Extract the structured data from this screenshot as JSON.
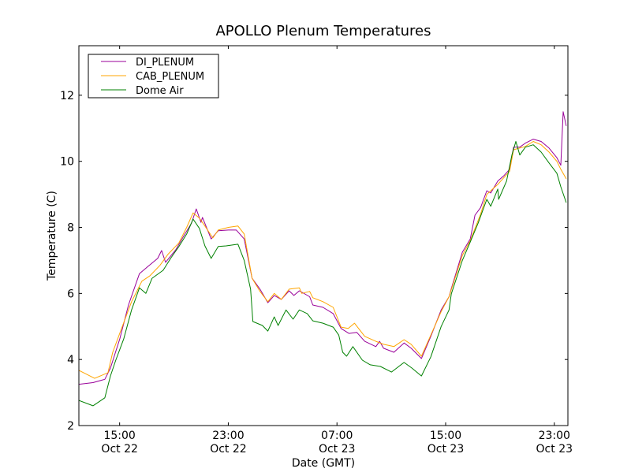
{
  "chart_data": {
    "type": "line",
    "title": "APOLLO Plenum Temperatures",
    "xlabel": "Date (GMT)",
    "ylabel": "Temperature (C)",
    "x_units": "hours since Oct 22 00:00 GMT",
    "xlim": [
      12,
      48
    ],
    "ylim": [
      2,
      13.5
    ],
    "grid": false,
    "legend_position": "top-left",
    "y_ticks": [
      2,
      4,
      6,
      8,
      10,
      12
    ],
    "x_ticks": [
      {
        "value": 15,
        "time": "15:00",
        "date": "Oct 22"
      },
      {
        "value": 23,
        "time": "23:00",
        "date": "Oct 22"
      },
      {
        "value": 31,
        "time": "07:00",
        "date": "Oct 23"
      },
      {
        "value": 39,
        "time": "15:00",
        "date": "Oct 23"
      },
      {
        "value": 47,
        "time": "23:00",
        "date": "Oct 23"
      }
    ],
    "series": [
      {
        "name": "DI_PLENUM",
        "color": "#990099",
        "points": [
          [
            12,
            3.25
          ],
          [
            13.04,
            3.3
          ],
          [
            13.91,
            3.4
          ],
          [
            14.32,
            3.74
          ],
          [
            15.01,
            4.62
          ],
          [
            15.65,
            5.65
          ],
          [
            16.46,
            6.6
          ],
          [
            17.04,
            6.8
          ],
          [
            17.8,
            7.06
          ],
          [
            18.09,
            7.3
          ],
          [
            18.38,
            6.94
          ],
          [
            19.13,
            7.32
          ],
          [
            19.71,
            7.73
          ],
          [
            20.29,
            8.13
          ],
          [
            20.64,
            8.56
          ],
          [
            20.99,
            8.15
          ],
          [
            21.1,
            8.3
          ],
          [
            21.74,
            7.65
          ],
          [
            22.26,
            7.9
          ],
          [
            23.01,
            7.92
          ],
          [
            23.59,
            7.92
          ],
          [
            24.17,
            7.65
          ],
          [
            24.75,
            6.46
          ],
          [
            25.33,
            6.13
          ],
          [
            25.91,
            5.72
          ],
          [
            26.38,
            5.94
          ],
          [
            26.9,
            5.82
          ],
          [
            27.48,
            6.08
          ],
          [
            27.83,
            5.94
          ],
          [
            28.23,
            6.08
          ],
          [
            28.99,
            5.9
          ],
          [
            29.22,
            5.65
          ],
          [
            29.97,
            5.58
          ],
          [
            30.72,
            5.39
          ],
          [
            31.3,
            4.94
          ],
          [
            31.88,
            4.79
          ],
          [
            32.46,
            4.82
          ],
          [
            33.04,
            4.55
          ],
          [
            33.86,
            4.39
          ],
          [
            34.14,
            4.55
          ],
          [
            34.43,
            4.34
          ],
          [
            35.19,
            4.22
          ],
          [
            35.94,
            4.5
          ],
          [
            36.46,
            4.34
          ],
          [
            37.22,
            4.03
          ],
          [
            37.91,
            4.7
          ],
          [
            38.67,
            5.5
          ],
          [
            39.25,
            5.9
          ],
          [
            39.42,
            6.15
          ],
          [
            40.23,
            7.25
          ],
          [
            40.81,
            7.65
          ],
          [
            41.16,
            8.37
          ],
          [
            41.57,
            8.6
          ],
          [
            42.03,
            9.11
          ],
          [
            42.32,
            9.04
          ],
          [
            42.84,
            9.4
          ],
          [
            43.3,
            9.57
          ],
          [
            43.71,
            9.76
          ],
          [
            44.0,
            10.43
          ],
          [
            44.46,
            10.43
          ],
          [
            44.87,
            10.55
          ],
          [
            45.45,
            10.67
          ],
          [
            46.03,
            10.6
          ],
          [
            46.61,
            10.4
          ],
          [
            47.19,
            10.11
          ],
          [
            47.48,
            9.88
          ],
          [
            47.65,
            11.5
          ],
          [
            47.88,
            11.07
          ]
        ]
      },
      {
        "name": "CAB_PLENUM",
        "color": "#FFA500",
        "points": [
          [
            12,
            3.67
          ],
          [
            13.16,
            3.43
          ],
          [
            14.14,
            3.6
          ],
          [
            14.49,
            4.22
          ],
          [
            15.07,
            4.86
          ],
          [
            15.88,
            5.75
          ],
          [
            16.64,
            6.37
          ],
          [
            17.22,
            6.53
          ],
          [
            17.97,
            6.85
          ],
          [
            18.55,
            7.18
          ],
          [
            19.36,
            7.53
          ],
          [
            19.94,
            8.0
          ],
          [
            20.41,
            8.44
          ],
          [
            20.87,
            8.28
          ],
          [
            21.28,
            8.04
          ],
          [
            21.86,
            7.68
          ],
          [
            22.26,
            7.92
          ],
          [
            23.01,
            8.0
          ],
          [
            23.71,
            8.04
          ],
          [
            24.17,
            7.8
          ],
          [
            24.75,
            6.46
          ],
          [
            25.33,
            6.06
          ],
          [
            25.91,
            5.75
          ],
          [
            26.38,
            6.0
          ],
          [
            26.9,
            5.82
          ],
          [
            27.48,
            6.13
          ],
          [
            28.23,
            6.17
          ],
          [
            28.41,
            6.0
          ],
          [
            28.99,
            6.06
          ],
          [
            29.22,
            5.87
          ],
          [
            29.97,
            5.75
          ],
          [
            30.72,
            5.58
          ],
          [
            31.3,
            4.98
          ],
          [
            31.83,
            4.94
          ],
          [
            32.29,
            5.1
          ],
          [
            33.04,
            4.7
          ],
          [
            33.86,
            4.55
          ],
          [
            34.43,
            4.46
          ],
          [
            35.19,
            4.39
          ],
          [
            35.94,
            4.6
          ],
          [
            36.46,
            4.46
          ],
          [
            37.22,
            4.1
          ],
          [
            37.91,
            4.74
          ],
          [
            38.67,
            5.45
          ],
          [
            39.25,
            5.9
          ],
          [
            40.23,
            7.15
          ],
          [
            40.81,
            7.6
          ],
          [
            41.57,
            8.4
          ],
          [
            42.03,
            9.0
          ],
          [
            42.84,
            9.3
          ],
          [
            43.71,
            9.7
          ],
          [
            44.0,
            10.35
          ],
          [
            44.87,
            10.45
          ],
          [
            45.45,
            10.6
          ],
          [
            46.03,
            10.5
          ],
          [
            46.61,
            10.28
          ],
          [
            47.19,
            10.0
          ],
          [
            47.48,
            9.76
          ],
          [
            47.88,
            9.47
          ]
        ]
      },
      {
        "name": "Dome Air",
        "color": "#008000",
        "points": [
          [
            12,
            2.76
          ],
          [
            13.04,
            2.6
          ],
          [
            13.91,
            2.84
          ],
          [
            14.32,
            3.5
          ],
          [
            14.72,
            3.98
          ],
          [
            15.3,
            4.62
          ],
          [
            15.88,
            5.5
          ],
          [
            16.46,
            6.17
          ],
          [
            16.93,
            6.0
          ],
          [
            17.39,
            6.46
          ],
          [
            18.2,
            6.7
          ],
          [
            18.78,
            7.08
          ],
          [
            19.36,
            7.42
          ],
          [
            19.94,
            7.8
          ],
          [
            20.41,
            8.25
          ],
          [
            20.87,
            7.97
          ],
          [
            21.28,
            7.44
          ],
          [
            21.74,
            7.06
          ],
          [
            22.26,
            7.42
          ],
          [
            22.84,
            7.44
          ],
          [
            23.71,
            7.49
          ],
          [
            24.17,
            7.0
          ],
          [
            24.64,
            6.13
          ],
          [
            24.81,
            5.15
          ],
          [
            25.51,
            5.03
          ],
          [
            25.91,
            4.86
          ],
          [
            26.38,
            5.29
          ],
          [
            26.67,
            5.03
          ],
          [
            27.25,
            5.5
          ],
          [
            27.77,
            5.22
          ],
          [
            28.23,
            5.5
          ],
          [
            28.81,
            5.39
          ],
          [
            29.22,
            5.17
          ],
          [
            29.97,
            5.1
          ],
          [
            30.72,
            4.98
          ],
          [
            31.13,
            4.74
          ],
          [
            31.42,
            4.22
          ],
          [
            31.71,
            4.1
          ],
          [
            32.17,
            4.39
          ],
          [
            32.87,
            3.98
          ],
          [
            33.45,
            3.84
          ],
          [
            34.2,
            3.79
          ],
          [
            35.01,
            3.62
          ],
          [
            35.94,
            3.91
          ],
          [
            36.52,
            3.74
          ],
          [
            37.22,
            3.5
          ],
          [
            37.91,
            4.08
          ],
          [
            38.67,
            5.0
          ],
          [
            39.25,
            5.5
          ],
          [
            39.42,
            5.99
          ],
          [
            40.23,
            7.0
          ],
          [
            40.81,
            7.56
          ],
          [
            41.39,
            8.13
          ],
          [
            42.03,
            8.85
          ],
          [
            42.32,
            8.64
          ],
          [
            42.84,
            9.16
          ],
          [
            42.9,
            8.85
          ],
          [
            43.48,
            9.4
          ],
          [
            43.88,
            10.19
          ],
          [
            44.17,
            10.6
          ],
          [
            44.46,
            10.19
          ],
          [
            44.87,
            10.43
          ],
          [
            45.45,
            10.5
          ],
          [
            46.03,
            10.28
          ],
          [
            46.61,
            9.95
          ],
          [
            47.19,
            9.64
          ],
          [
            47.48,
            9.23
          ],
          [
            47.88,
            8.75
          ]
        ]
      }
    ]
  }
}
